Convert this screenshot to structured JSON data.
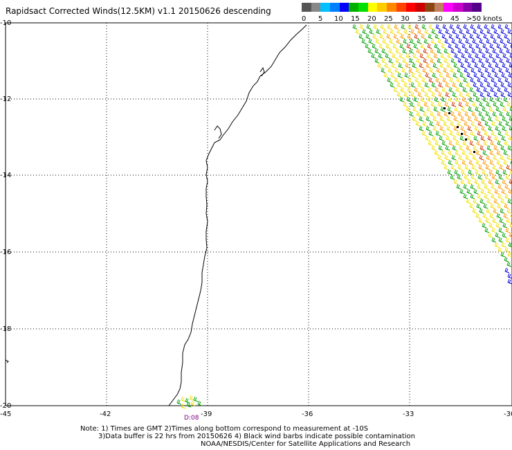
{
  "title": "Rapidsact Corrected Winds(12.5KM) v1.1 20150626 descending",
  "legend": {
    "colors": [
      "#555555",
      "#888888",
      "#00c0ff",
      "#0080ff",
      "#0000ff",
      "#00b000",
      "#00e000",
      "#ffff00",
      "#ffcc00",
      "#ff8800",
      "#ff4400",
      "#ff0000",
      "#cc0000",
      "#8b4513",
      "#c08060",
      "#ff00ff",
      "#cc00cc",
      "#8800aa",
      "#550088"
    ],
    "labels": [
      "0",
      "5",
      "10",
      "15",
      "20",
      "25",
      "30",
      "35",
      "40",
      "45",
      ">50 knots"
    ]
  },
  "axes": {
    "y_labels": [
      "-10",
      "-12",
      "-14",
      "-16",
      "-18",
      "-20"
    ],
    "x_labels": [
      "-45",
      "-42",
      "-39",
      "-36",
      "-33",
      "-30"
    ]
  },
  "time_label": "D:08",
  "notes": [
    "Note: 1) Times are GMT 2)Times along bottom correspond to measurement at -10S",
    "3)Data buffer is 22 hrs from 20150626 4) Black wind barbs indicate possible contamination",
    "NOAA/NESDIS/Center for Satellite Applications and Research"
  ],
  "wind_colors": {
    "green": "#00a000",
    "yellow": "#f0e000",
    "orange": "#ff9900",
    "red": "#cc3300",
    "blue": "#0000dd",
    "black": "#000000"
  }
}
